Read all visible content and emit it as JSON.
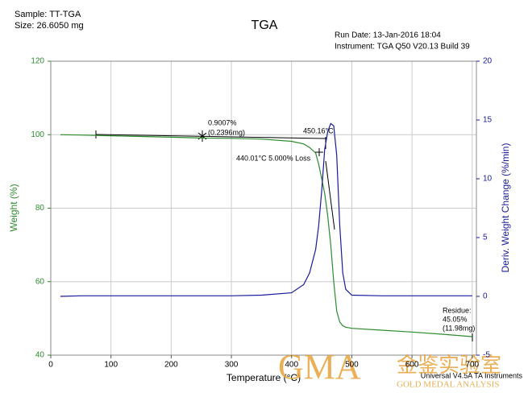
{
  "header": {
    "sample": "Sample: TT-TGA",
    "size": "Size:  26.6050 mg",
    "run_date": "Run Date: 13-Jan-2016 18:04",
    "instrument": "Instrument: TGA Q50 V20.13 Build 39",
    "footer": "Universal V4.5A TA Instruments",
    "watermark": "GMA",
    "watermark_cn": "金鉴实验室",
    "watermark_en": "GOLD MEDAL ANALYSIS"
  },
  "chart_data": {
    "type": "line",
    "title": "TGA",
    "x_label": "Temperature (°C)",
    "y_label": "Weight (%)",
    "y2_label": "Deriv. Weight Change (%/min)",
    "x": [
      16,
      50,
      100,
      150,
      200,
      250,
      300,
      350,
      400,
      420,
      430,
      440,
      445,
      450,
      455,
      460,
      465,
      470,
      475,
      480,
      485,
      490,
      500,
      550,
      600,
      650,
      700
    ],
    "series": [
      {
        "name": "Weight (%)",
        "color": "#2e8b2e",
        "values": [
          100,
          99.9,
          99.7,
          99.5,
          99.3,
          99.1,
          99.0,
          98.8,
          98.2,
          97.5,
          96.5,
          95,
          92,
          88,
          84,
          78,
          70,
          60,
          52,
          49,
          48,
          47.6,
          47.3,
          46.8,
          46.3,
          45.7,
          45.05
        ]
      },
      {
        "name": "Deriv. Weight Change (%/min)",
        "color": "#1a1a9c",
        "axis": "y2",
        "values": [
          0,
          0.05,
          0.05,
          0.05,
          0.05,
          0.05,
          0.05,
          0.1,
          0.3,
          1.0,
          2.0,
          4.0,
          6.0,
          9.0,
          12.5,
          14.0,
          14.7,
          14.5,
          12.0,
          6.0,
          2.0,
          0.6,
          0.1,
          0.05,
          0.05,
          0.05,
          0.05
        ]
      }
    ],
    "xlim": [
      0,
      707
    ],
    "xticks": [
      0,
      100,
      200,
      300,
      400,
      500,
      600,
      700
    ],
    "ylim": [
      40,
      120
    ],
    "yticks": [
      40,
      60,
      80,
      100,
      120
    ],
    "y2lim": [
      -5,
      20
    ],
    "y2ticks": [
      -5,
      0,
      5,
      10,
      15,
      20
    ],
    "grid": true,
    "annotations": [
      "0.9007%",
      "(0.2396mg)",
      "450.16°C",
      "440.01°C 5.000% Loss",
      "Residue:",
      "45.05%",
      "(11.98mg)"
    ]
  }
}
